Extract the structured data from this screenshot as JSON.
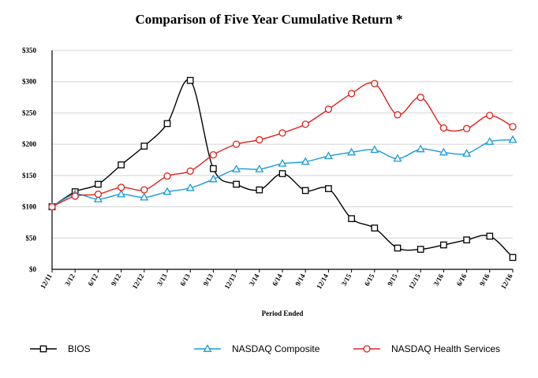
{
  "chart_data": {
    "type": "line",
    "title": "Comparison of Five Year Cumulative Return *",
    "xlabel": "Period Ended",
    "ylabel": "",
    "ylim": [
      0,
      350
    ],
    "yticks": [
      0,
      50,
      100,
      150,
      200,
      250,
      300,
      350
    ],
    "ytick_labels": [
      "$0",
      "$50",
      "$100",
      "$150",
      "$200",
      "$250",
      "$300",
      "$350"
    ],
    "categories": [
      "12/11",
      "3/12",
      "6/12",
      "9/12",
      "12/12",
      "3/13",
      "6/13",
      "9/13",
      "12/13",
      "3/14",
      "6/14",
      "9/14",
      "12/14",
      "3/15",
      "6/15",
      "9/15",
      "12/15",
      "3/16",
      "6/16",
      "9/16",
      "12/16"
    ],
    "grid": "horizontal",
    "legend_position": "bottom",
    "series": [
      {
        "name": "BIOS",
        "color": "#000000",
        "marker": "square",
        "values": [
          100,
          124,
          136,
          167,
          197,
          233,
          302,
          161,
          136,
          127,
          153,
          126,
          129,
          81,
          66,
          34,
          32,
          39,
          47,
          53,
          19
        ]
      },
      {
        "name": "NASDAQ Composite",
        "color": "#1a9ad6",
        "marker": "triangle",
        "values": [
          100,
          120,
          112,
          120,
          115,
          124,
          130,
          144,
          160,
          160,
          169,
          172,
          181,
          187,
          191,
          177,
          192,
          187,
          185,
          204,
          207
        ]
      },
      {
        "name": "NASDAQ Health Services",
        "color": "#e0201b",
        "marker": "circle",
        "values": [
          100,
          117,
          120,
          131,
          127,
          149,
          157,
          183,
          200,
          207,
          218,
          232,
          256,
          281,
          297,
          247,
          275,
          226,
          225,
          246,
          228
        ]
      }
    ]
  }
}
